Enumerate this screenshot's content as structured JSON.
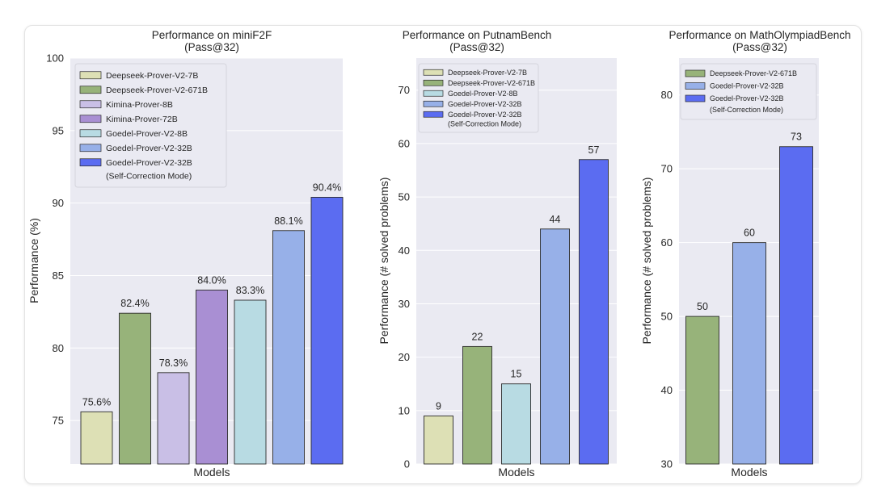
{
  "colors": {
    "plot_bg": "#eaeaf2",
    "grid": "#ffffff",
    "deepseek_7b": "#dde0b5",
    "deepseek_671b": "#97b37a",
    "kimina_8b": "#c9bfe6",
    "kimina_72b": "#a98fd3",
    "goedel_8b": "#b8dbe3",
    "goedel_32b": "#97b0e8",
    "goedel_32b_sc": "#5b6cf1"
  },
  "chart_data": [
    {
      "type": "bar",
      "title": "Performance on miniF2F",
      "subtitle": "(Pass@32)",
      "xlabel": "Models",
      "ylabel": "Performance (%)",
      "ylim": [
        72,
        100
      ],
      "yticks": [
        75,
        80,
        85,
        90,
        95,
        100
      ],
      "grid": true,
      "legend_position": "top-left",
      "categories": [
        "Deepseek-Prover-V2-7B",
        "Deepseek-Prover-V2-671B",
        "Kimina-Prover-8B",
        "Kimina-Prover-72B",
        "Goedel-Prover-V2-8B",
        "Goedel-Prover-V2-32B",
        "Goedel-Prover-V2-32B (Self-Correction Mode)"
      ],
      "series_keys": [
        "deepseek_7b",
        "deepseek_671b",
        "kimina_8b",
        "kimina_72b",
        "goedel_8b",
        "goedel_32b",
        "goedel_32b_sc"
      ],
      "legend": [
        [
          "Deepseek-Prover-V2-7B"
        ],
        [
          "Deepseek-Prover-V2-671B"
        ],
        [
          "Kimina-Prover-8B"
        ],
        [
          "Kimina-Prover-72B"
        ],
        [
          "Goedel-Prover-V2-8B"
        ],
        [
          "Goedel-Prover-V2-32B"
        ],
        [
          "Goedel-Prover-V2-32B",
          "(Self-Correction Mode)"
        ]
      ],
      "values": [
        75.6,
        82.4,
        78.3,
        84.0,
        83.3,
        88.1,
        90.4
      ],
      "value_labels": [
        "75.6%",
        "82.4%",
        "78.3%",
        "84.0%",
        "83.3%",
        "88.1%",
        "90.4%"
      ]
    },
    {
      "type": "bar",
      "title": "Performance on PutnamBench",
      "subtitle": "(Pass@32)",
      "xlabel": "Models",
      "ylabel": "Performance (# solved problems)",
      "ylim": [
        0,
        76
      ],
      "yticks": [
        0,
        10,
        20,
        30,
        40,
        50,
        60,
        70
      ],
      "grid": true,
      "legend_position": "top-left",
      "categories": [
        "Deepseek-Prover-V2-7B",
        "Deepseek-Prover-V2-671B",
        "Goedel-Prover-V2-8B",
        "Goedel-Prover-V2-32B",
        "Goedel-Prover-V2-32B (Self-Correction Mode)"
      ],
      "series_keys": [
        "deepseek_7b",
        "deepseek_671b",
        "goedel_8b",
        "goedel_32b",
        "goedel_32b_sc"
      ],
      "legend": [
        [
          "Deepseek-Prover-V2-7B"
        ],
        [
          "Deepseek-Prover-V2-671B"
        ],
        [
          "Goedel-Prover-V2-8B"
        ],
        [
          "Goedel-Prover-V2-32B"
        ],
        [
          "Goedel-Prover-V2-32B",
          "(Self-Correction Mode)"
        ]
      ],
      "values": [
        9,
        22,
        15,
        44,
        57
      ],
      "value_labels": [
        "9",
        "22",
        "15",
        "44",
        "57"
      ]
    },
    {
      "type": "bar",
      "title": "Performance on MathOlympiadBench",
      "subtitle": "(Pass@32)",
      "xlabel": "Models",
      "ylabel": "Performance (# solved problems)",
      "ylim": [
        30,
        85
      ],
      "yticks": [
        30,
        40,
        50,
        60,
        70,
        80
      ],
      "grid": true,
      "legend_position": "top-left",
      "categories": [
        "Deepseek-Prover-V2-671B",
        "Goedel-Prover-V2-32B",
        "Goedel-Prover-V2-32B (Self-Correction Mode)"
      ],
      "series_keys": [
        "deepseek_671b",
        "goedel_32b",
        "goedel_32b_sc"
      ],
      "legend": [
        [
          "Deepseek-Prover-V2-671B"
        ],
        [
          "Goedel-Prover-V2-32B"
        ],
        [
          "Goedel-Prover-V2-32B",
          "(Self-Correction Mode)"
        ]
      ],
      "values": [
        50,
        60,
        73
      ],
      "value_labels": [
        "50",
        "60",
        "73"
      ]
    }
  ]
}
